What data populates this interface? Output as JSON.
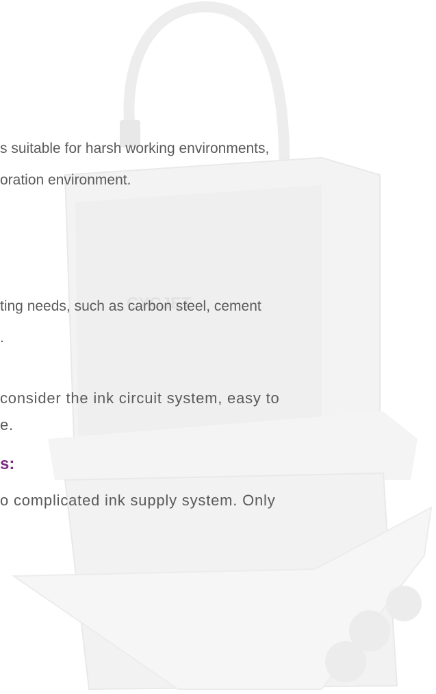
{
  "logo": "CYCJET",
  "paragraphs": [
    [
      "s suitable for harsh working environments,",
      "oration environment."
    ],
    [
      "ting needs, such as carbon steel, cement",
      "."
    ],
    [
      "consider the ink circuit system, easy to",
      "e."
    ]
  ],
  "heading": "s:",
  "last_paragraph": [
    "o complicated ink supply system. Only"
  ]
}
